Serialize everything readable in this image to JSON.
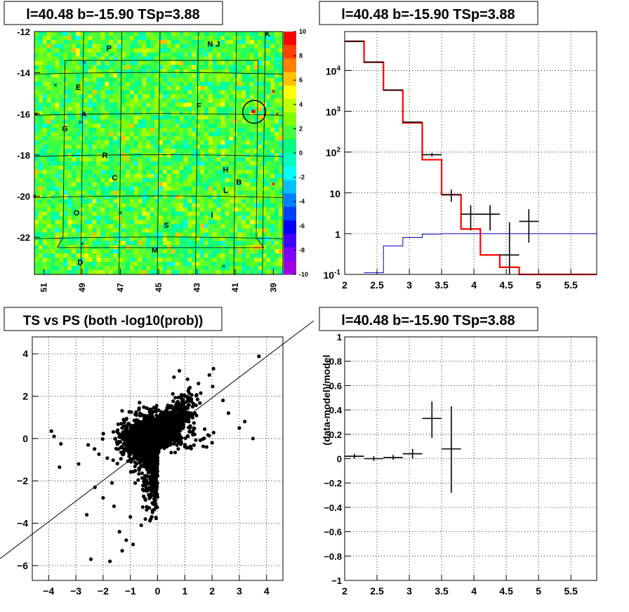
{
  "panels": {
    "tl": {
      "title": "l=40.48 b=-15.90 TSp=3.88"
    },
    "tr": {
      "title": "l=40.48 b=-15.90 TSp=3.88"
    },
    "bl": {
      "title": "TS vs PS (both -log10(prob))"
    },
    "br": {
      "title": "l=40.48 b=-15.90 TSp=3.88"
    }
  },
  "colors": {
    "data": "#000000",
    "model": "#ff0000",
    "bkg": "#0000cc",
    "diag": "#000000"
  },
  "chart_data": [
    {
      "type": "heatmap",
      "title": "l=40.48 b=-15.90 TSp=3.88",
      "xlim": [
        51.5,
        38.5
      ],
      "ylim": [
        -23.8,
        -12
      ],
      "x_ticks": [
        "51",
        "49",
        "47",
        "45",
        "43",
        "41",
        "39"
      ],
      "x_tick_values": [
        51,
        49,
        47,
        45,
        43,
        41,
        39
      ],
      "y_ticks": [
        "-12",
        "-14",
        "-16",
        "-18",
        "-20",
        "-22"
      ],
      "y_tick_values": [
        -12,
        -14,
        -16,
        -18,
        -20,
        -22
      ],
      "colorbar_ticks": [
        "10",
        "8",
        "6",
        "4",
        "2",
        "0",
        "-2",
        "-4",
        "-6",
        "-8",
        "-10"
      ],
      "colorbar_values": [
        10,
        8,
        6,
        4,
        2,
        0,
        -2,
        -4,
        -6,
        -8,
        -10
      ],
      "colorbar_colors": [
        "#ff0000",
        "#ff4000",
        "#ff8000",
        "#ffc000",
        "#ffff00",
        "#c0ff00",
        "#80ff00",
        "#40ff40",
        "#00ff80",
        "#00ffc0",
        "#00ffff",
        "#00c0ff",
        "#0080ff",
        "#0040ff",
        "#0000ff",
        "#4000ff",
        "#8000ff",
        "#a000e0"
      ],
      "labels": [
        {
          "t": "P",
          "l": 47.6,
          "b": -12.8
        },
        {
          "t": "N",
          "l": 42.3,
          "b": -12.6
        },
        {
          "t": "J",
          "l": 41.9,
          "b": -12.6
        },
        {
          "t": "K",
          "l": 39.3,
          "b": -12.1
        },
        {
          "t": "E",
          "l": 49.2,
          "b": -14.7
        },
        {
          "t": "F",
          "l": 42.9,
          "b": -15.6
        },
        {
          "t": "A",
          "l": 48.9,
          "b": -16.0
        },
        {
          "t": "G",
          "l": 49.9,
          "b": -16.7
        },
        {
          "t": "R",
          "l": 47.8,
          "b": -18.0
        },
        {
          "t": "C",
          "l": 47.3,
          "b": -19.1
        },
        {
          "t": "H",
          "l": 41.5,
          "b": -18.7
        },
        {
          "t": "B",
          "l": 40.8,
          "b": -19.3
        },
        {
          "t": "L",
          "l": 41.5,
          "b": -19.7
        },
        {
          "t": "O",
          "l": 49.3,
          "b": -20.8
        },
        {
          "t": "I",
          "l": 42.2,
          "b": -20.9
        },
        {
          "t": "S",
          "l": 44.6,
          "b": -21.4
        },
        {
          "t": "M",
          "l": 45.2,
          "b": -22.6
        },
        {
          "t": "D",
          "l": 49.1,
          "b": -23.2
        }
      ],
      "crosses": [
        {
          "l": 50.4,
          "b": -14.6
        },
        {
          "l": 48.9,
          "b": -13.5
        },
        {
          "l": 49.1,
          "b": -16.4
        },
        {
          "l": 39.0,
          "b": -14.9
        },
        {
          "l": 38.8,
          "b": -16.0
        },
        {
          "l": 51.5,
          "b": -20.0
        },
        {
          "l": 39.0,
          "b": -19.4
        },
        {
          "l": 47.0,
          "b": -20.8
        },
        {
          "l": 49.0,
          "b": -22.3
        },
        {
          "l": 41.6,
          "b": -23.4
        },
        {
          "l": 51.4,
          "b": -16.0
        }
      ],
      "circle": {
        "l": 40.0,
        "b": -15.9,
        "r_deg": 0.52
      },
      "source": {
        "l": 40.0,
        "b": -15.9
      }
    },
    {
      "type": "line",
      "title": "l=40.48 b=-15.90 TSp=3.88",
      "yscale": "log",
      "xlim": [
        2,
        5.9
      ],
      "ylim": [
        0.1,
        90000
      ],
      "x_ticks": [
        "2",
        "2.5",
        "3",
        "3.5",
        "4",
        "4.5",
        "5",
        "5.5"
      ],
      "x_tick_values": [
        2,
        2.5,
        3,
        3.5,
        4,
        4.5,
        5,
        5.5
      ],
      "y_ticks": [
        "10^-1",
        "1",
        "10",
        "10^2",
        "10^3",
        "10^4"
      ],
      "y_tick_values": [
        0.1,
        1,
        10,
        100,
        1000,
        10000
      ],
      "bin_edges": [
        2.0,
        2.3,
        2.6,
        2.9,
        3.2,
        3.5,
        3.8,
        4.1,
        4.4,
        4.7,
        5.0,
        5.9
      ],
      "series": [
        {
          "values": [
            52000,
            16000,
            3300,
            520,
            65,
            9,
            1.3,
            0.3,
            0.15,
            0.1,
            0.1
          ]
        },
        {
          "values": [
            0,
            0.11,
            0.5,
            0.8,
            0.97,
            1,
            1,
            1,
            1,
            1,
            1
          ]
        }
      ],
      "data_points": [
        {
          "x": 2.15,
          "y": 52000,
          "xe": 0.15,
          "lo": 0,
          "hi": 0
        },
        {
          "x": 2.45,
          "y": 16000,
          "xe": 0.15,
          "lo": 0,
          "hi": 0
        },
        {
          "x": 2.75,
          "y": 3300,
          "xe": 0.15,
          "lo": 0,
          "hi": 0
        },
        {
          "x": 3.05,
          "y": 540,
          "xe": 0.15,
          "lo": 520,
          "hi": 560
        },
        {
          "x": 3.35,
          "y": 86,
          "xe": 0.15,
          "lo": 78,
          "hi": 95
        },
        {
          "x": 3.65,
          "y": 9,
          "xe": 0.15,
          "lo": 6,
          "hi": 12
        },
        {
          "x": 3.95,
          "y": 3,
          "xe": 0.15,
          "lo": 1.2,
          "hi": 5
        },
        {
          "x": 4.25,
          "y": 3,
          "xe": 0.15,
          "lo": 1.2,
          "hi": 5
        },
        {
          "x": 4.55,
          "y": 0.3,
          "xe": 0.15,
          "lo": 0.1,
          "hi": 1.9
        },
        {
          "x": 4.85,
          "y": 2,
          "xe": 0.15,
          "lo": 0.6,
          "hi": 4
        }
      ]
    },
    {
      "type": "scatter",
      "title": "TS vs PS (both -log10(prob))",
      "xlim": [
        -4.6,
        4.6
      ],
      "ylim": [
        -6.7,
        4.8
      ],
      "x_ticks": [
        "−4",
        "−3",
        "−2",
        "−1",
        "0",
        "1",
        "2",
        "3",
        "4"
      ],
      "x_tick_values": [
        -4,
        -3,
        -2,
        -1,
        0,
        1,
        2,
        3,
        4
      ],
      "y_ticks": [
        "−6",
        "−4",
        "−2",
        "0",
        "2",
        "4"
      ],
      "y_tick_values": [
        -6,
        -4,
        -2,
        0,
        2,
        4
      ],
      "outliers": [
        [
          3.72,
          3.88
        ],
        [
          2.05,
          3.3
        ],
        [
          0.8,
          3.2
        ],
        [
          1.9,
          3.0
        ],
        [
          0.6,
          2.9
        ],
        [
          1.1,
          2.8
        ],
        [
          1.5,
          2.6
        ],
        [
          2.4,
          1.8
        ],
        [
          2.6,
          1.2
        ],
        [
          3.2,
          0.8
        ],
        [
          3.0,
          0.5
        ],
        [
          3.5,
          0.0
        ],
        [
          2.0,
          -0.2
        ],
        [
          1.8,
          -0.4
        ],
        [
          -3.9,
          0.35
        ],
        [
          -3.8,
          0.1
        ],
        [
          -3.55,
          -0.25
        ],
        [
          -3.6,
          -1.35
        ],
        [
          -2.9,
          -1.2
        ],
        [
          -2.55,
          -0.3
        ],
        [
          -2.3,
          -2.3
        ],
        [
          -2.6,
          -3.6
        ],
        [
          -2.45,
          -5.7
        ],
        [
          -1.75,
          -5.8
        ],
        [
          -1.3,
          -5.3
        ],
        [
          -1.15,
          -4.8
        ],
        [
          -0.9,
          -5.0
        ],
        [
          -1.4,
          -4.4
        ],
        [
          -0.6,
          -4.1
        ],
        [
          -1.6,
          -3.2
        ],
        [
          -2.0,
          -2.8
        ],
        [
          -1.0,
          -3.7
        ]
      ],
      "diagonal": {
        "x1": -4.6,
        "y1": -4.6,
        "x2": 4.6,
        "y2": 4.6
      }
    },
    {
      "type": "scatter",
      "title": "l=40.48 b=-15.90 TSp=3.88",
      "ylabel": "(data-model)/model",
      "xlim": [
        2,
        5.9
      ],
      "ylim": [
        -1,
        1
      ],
      "x_ticks": [
        "2",
        "2.5",
        "3",
        "3.5",
        "4",
        "4.5",
        "5",
        "5.5"
      ],
      "x_tick_values": [
        2,
        2.5,
        3,
        3.5,
        4,
        4.5,
        5,
        5.5
      ],
      "y_ticks": [
        "−1",
        "−0.8",
        "−0.6",
        "−0.4",
        "−0.2",
        "0",
        "0.2",
        "0.4",
        "0.6",
        "0.8",
        "1"
      ],
      "y_tick_values": [
        -1,
        -0.8,
        -0.6,
        -0.4,
        -0.2,
        0,
        0.2,
        0.4,
        0.6,
        0.8,
        1
      ],
      "data_points": [
        {
          "x": 2.15,
          "y": 0.02,
          "xe": 0.15,
          "lo": 0.0,
          "hi": 0.04
        },
        {
          "x": 2.45,
          "y": 0.0,
          "xe": 0.15,
          "lo": -0.02,
          "hi": 0.02
        },
        {
          "x": 2.75,
          "y": 0.01,
          "xe": 0.15,
          "lo": -0.01,
          "hi": 0.03
        },
        {
          "x": 3.05,
          "y": 0.04,
          "xe": 0.15,
          "lo": 0.0,
          "hi": 0.08
        },
        {
          "x": 3.35,
          "y": 0.33,
          "xe": 0.15,
          "lo": 0.17,
          "hi": 0.47
        },
        {
          "x": 3.65,
          "y": 0.08,
          "xe": 0.15,
          "lo": -0.28,
          "hi": 0.43
        }
      ]
    }
  ]
}
